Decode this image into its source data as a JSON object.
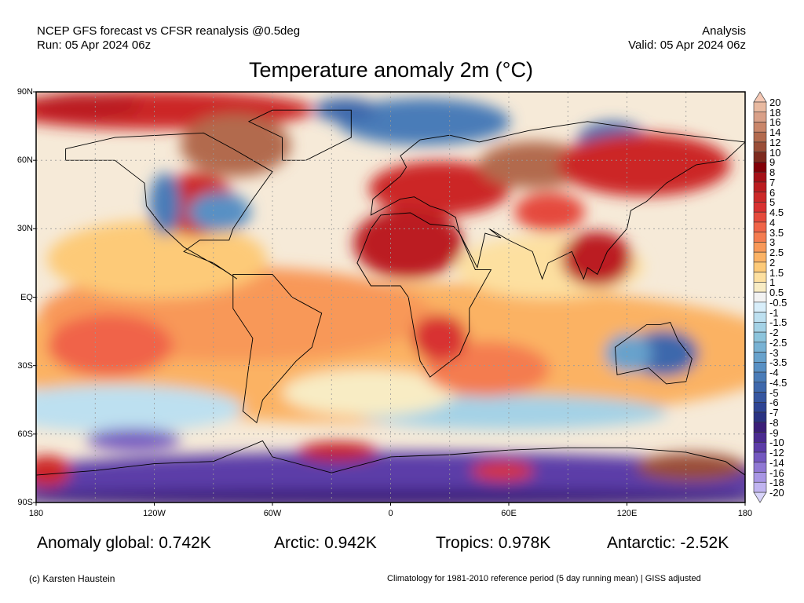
{
  "header": {
    "left_line1": "NCEP GFS forecast vs CFSR reanalysis @0.5deg",
    "left_line2": "Run: 05 Apr 2024 06z",
    "right_line1": "Analysis",
    "right_line2": "Valid: 05 Apr 2024 06z"
  },
  "title": "Temperature anomaly 2m (°C)",
  "axes": {
    "lat_labels": [
      "90N",
      "60N",
      "30N",
      "EQ",
      "30S",
      "60S",
      "90S"
    ],
    "lon_labels": [
      "180",
      "120W",
      "60W",
      "0",
      "60E",
      "120E",
      "180"
    ]
  },
  "colorbar": {
    "labels": [
      "20",
      "18",
      "16",
      "14",
      "12",
      "10",
      "9",
      "8",
      "7",
      "6",
      "5",
      "4.5",
      "4",
      "3.5",
      "3",
      "2.5",
      "2",
      "1.5",
      "1",
      "0.5",
      "-0.5",
      "-1",
      "-1.5",
      "-2",
      "-2.5",
      "-3",
      "-3.5",
      "-4",
      "-4.5",
      "-5",
      "-6",
      "-7",
      "-8",
      "-9",
      "-10",
      "-12",
      "-14",
      "-16",
      "-18",
      "-20"
    ],
    "colors": [
      "#e8b9a0",
      "#d9a088",
      "#c9866a",
      "#b26a4e",
      "#9a4e38",
      "#7e2a1e",
      "#820008",
      "#a51018",
      "#bb1c20",
      "#cc2828",
      "#d83030",
      "#e54a3c",
      "#f06448",
      "#f47c50",
      "#f89858",
      "#fbb264",
      "#fdca78",
      "#fde0a0",
      "#f8ecc4",
      "#f2f2f2",
      "#d8eefa",
      "#bde0f0",
      "#a4d2e6",
      "#8cc4dc",
      "#78b2d4",
      "#68a2cc",
      "#5890c4",
      "#4a7cb8",
      "#3e68ac",
      "#3656a0",
      "#2e4494",
      "#2a3282",
      "#3a1e78",
      "#4a2a90",
      "#5c3ca8",
      "#7458c0",
      "#9078d4",
      "#a896e4",
      "#c0b4f0"
    ],
    "over_color": "#f5c8b4",
    "under_color": "#d8d4fa"
  },
  "stats": {
    "global": "Anomaly global: 0.742K",
    "arctic": "Arctic: 0.942K",
    "tropics": "Tropics: 0.978K",
    "antarctic": "Antarctic: -2.52K"
  },
  "footer": {
    "credit": "(c) Karsten Haustein",
    "note": "Climatology for 1981-2010 reference period (5 day running mean) | GISS adjusted"
  }
}
